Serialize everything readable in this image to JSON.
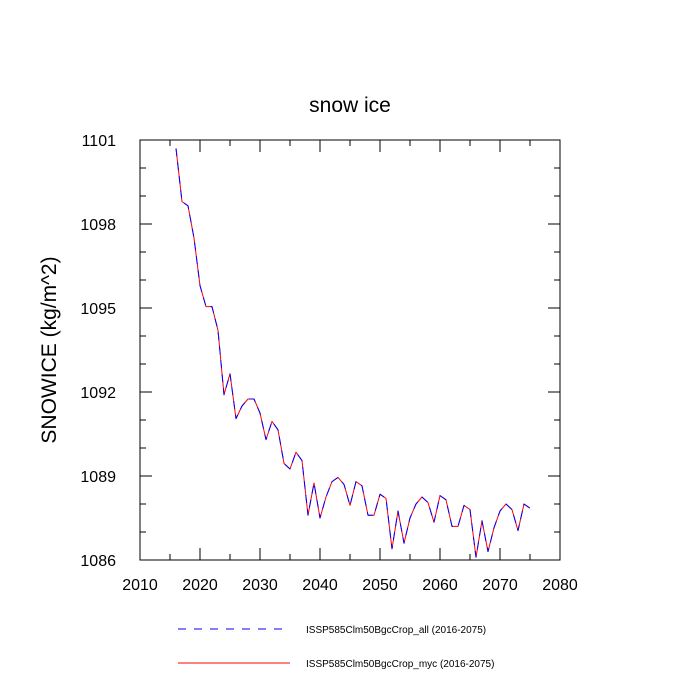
{
  "chart_data": {
    "type": "line",
    "title": "snow ice",
    "xlabel": "",
    "ylabel": "SNOWICE  (kg/m^2)",
    "xlim": [
      2010,
      2080
    ],
    "ylim": [
      1086,
      1101
    ],
    "x_ticks": [
      2010,
      2020,
      2030,
      2040,
      2050,
      2060,
      2070,
      2080
    ],
    "y_ticks": [
      1086,
      1089,
      1092,
      1095,
      1098,
      1101
    ],
    "x_minor_step": 5,
    "y_minor_step": 1,
    "grid": false,
    "legend_position": "bottom",
    "x": [
      2016,
      2017,
      2018,
      2019,
      2020,
      2021,
      2022,
      2023,
      2024,
      2025,
      2026,
      2027,
      2028,
      2029,
      2030,
      2031,
      2032,
      2033,
      2034,
      2035,
      2036,
      2037,
      2038,
      2039,
      2040,
      2041,
      2042,
      2043,
      2044,
      2045,
      2046,
      2047,
      2048,
      2049,
      2050,
      2051,
      2052,
      2053,
      2054,
      2055,
      2056,
      2057,
      2058,
      2059,
      2060,
      2061,
      2062,
      2063,
      2064,
      2065,
      2066,
      2067,
      2068,
      2069,
      2070,
      2071,
      2072,
      2073,
      2074,
      2075
    ],
    "series": [
      {
        "name": "ISSP585Clm50BgcCrop_all (2016-2075)",
        "color": "#0000ff",
        "dash": "dashed",
        "values": [
          1100.7,
          1098.8,
          1098.65,
          1097.5,
          1095.8,
          1095.05,
          1095.05,
          1094.2,
          1091.9,
          1092.65,
          1091.05,
          1091.5,
          1091.75,
          1091.75,
          1091.25,
          1090.3,
          1090.95,
          1090.65,
          1089.45,
          1089.25,
          1089.85,
          1089.55,
          1087.6,
          1088.75,
          1087.5,
          1088.25,
          1088.8,
          1088.95,
          1088.7,
          1087.95,
          1088.8,
          1088.65,
          1087.6,
          1087.6,
          1088.35,
          1088.2,
          1086.4,
          1087.75,
          1086.6,
          1087.5,
          1088.0,
          1088.25,
          1088.05,
          1087.35,
          1088.3,
          1088.15,
          1087.2,
          1087.2,
          1087.95,
          1087.8,
          1086.1,
          1087.4,
          1086.3,
          1087.15,
          1087.75,
          1088.0,
          1087.8,
          1087.05,
          1088.0,
          1087.85
        ]
      },
      {
        "name": "ISSP585Clm50BgcCrop_myc (2016-2075)",
        "color": "#ff0000",
        "dash": "solid",
        "values": [
          1100.7,
          1098.8,
          1098.65,
          1097.5,
          1095.8,
          1095.05,
          1095.05,
          1094.2,
          1091.9,
          1092.65,
          1091.05,
          1091.5,
          1091.75,
          1091.75,
          1091.25,
          1090.3,
          1090.95,
          1090.65,
          1089.45,
          1089.25,
          1089.85,
          1089.55,
          1087.6,
          1088.75,
          1087.5,
          1088.25,
          1088.8,
          1088.95,
          1088.7,
          1087.95,
          1088.8,
          1088.65,
          1087.6,
          1087.6,
          1088.35,
          1088.2,
          1086.4,
          1087.75,
          1086.6,
          1087.5,
          1088.0,
          1088.25,
          1088.05,
          1087.35,
          1088.3,
          1088.15,
          1087.2,
          1087.2,
          1087.95,
          1087.8,
          1086.1,
          1087.4,
          1086.3,
          1087.15,
          1087.75,
          1088.0,
          1087.8,
          1087.05,
          1088.0,
          1087.85
        ]
      }
    ]
  }
}
